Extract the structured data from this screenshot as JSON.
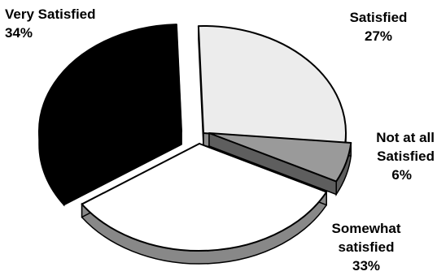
{
  "chart_data": {
    "type": "pie",
    "three_d": true,
    "exploded": true,
    "legend": "none",
    "slices": [
      {
        "key": "satisfied",
        "label": "Satisfied",
        "value": 27,
        "value_text": "27%",
        "color": "#ececec",
        "side_color": "#8c8c8c"
      },
      {
        "key": "not-at-all",
        "label": "Not at all Satisfied",
        "value": 6,
        "value_text": "6%",
        "color": "#9a9a9a",
        "side_color": "#5e5e5e"
      },
      {
        "key": "somewhat",
        "label": "Somewhat satisfied",
        "value": 33,
        "value_text": "33%",
        "color": "#ffffff",
        "side_color": "#888888"
      },
      {
        "key": "very",
        "label": "Very Satisfied",
        "value": 34,
        "value_text": "34%",
        "color": "#000000",
        "side_color": "#000000"
      }
    ]
  },
  "labels": {
    "very": {
      "line1": "Very Satisfied",
      "line2": "34%"
    },
    "satisfied": {
      "line1": "Satisfied",
      "line2": "27%"
    },
    "not_at_all": {
      "line1": "Not at all",
      "line2": "Satisfied",
      "line3": "6%"
    },
    "somewhat": {
      "line1": "Somewhat",
      "line2": "satisfied",
      "line3": "33%"
    }
  }
}
